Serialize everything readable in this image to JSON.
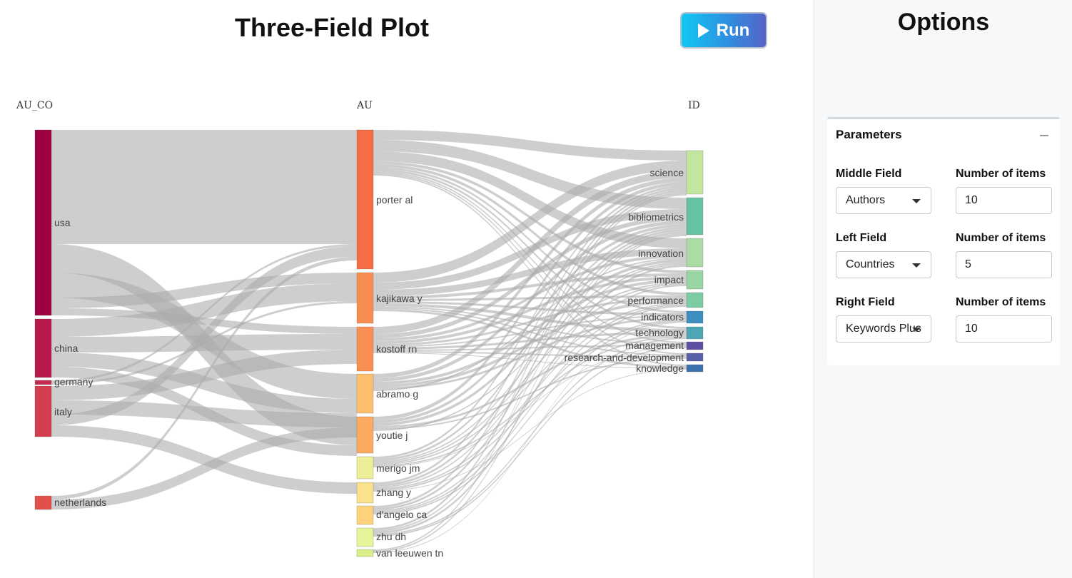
{
  "main": {
    "title": "Three-Field Plot",
    "run_label": "Run"
  },
  "chart_data": {
    "type": "sankey",
    "columns": [
      "AU_CO",
      "AU",
      "ID"
    ],
    "left_nodes": [
      {
        "label": "usa",
        "color": "#9e0142"
      },
      {
        "label": "china",
        "color": "#b8194a"
      },
      {
        "label": "germany",
        "color": "#c52a4f"
      },
      {
        "label": "italy",
        "color": "#d53e4f"
      },
      {
        "label": "netherlands",
        "color": "#e2504a"
      }
    ],
    "middle_nodes": [
      {
        "label": "porter al",
        "color": "#f46d43"
      },
      {
        "label": "kajikawa y",
        "color": "#f88d52"
      },
      {
        "label": "kostoff rn",
        "color": "#f98e52"
      },
      {
        "label": "abramo g",
        "color": "#fdbe6e"
      },
      {
        "label": "youtie j",
        "color": "#fcaa5f"
      },
      {
        "label": "merigo jm",
        "color": "#eeee96"
      },
      {
        "label": "zhang y",
        "color": "#fbe18c"
      },
      {
        "label": "d'angelo ca",
        "color": "#fdd27a"
      },
      {
        "label": "zhu dh",
        "color": "#e6f598"
      },
      {
        "label": "van leeuwen tn",
        "color": "#d9ef8b"
      }
    ],
    "right_nodes": [
      {
        "label": "science",
        "color": "#c2e6a0"
      },
      {
        "label": "bibliometrics",
        "color": "#66c2a5"
      },
      {
        "label": "innovation",
        "color": "#aadca4"
      },
      {
        "label": "impact",
        "color": "#98d5a2"
      },
      {
        "label": "performance",
        "color": "#7ccba2"
      },
      {
        "label": "indicators",
        "color": "#3e8fbf"
      },
      {
        "label": "technology",
        "color": "#4ea6b4"
      },
      {
        "label": "management",
        "color": "#5e4fa2"
      },
      {
        "label": "research-and-development",
        "color": "#5860a8"
      },
      {
        "label": "knowledge",
        "color": "#3d72b0"
      }
    ]
  },
  "sidebar": {
    "title": "Options",
    "parameters_title": "Parameters",
    "middle_field_label": "Middle Field",
    "middle_field_value": "Authors",
    "middle_items_label": "Number of items",
    "middle_items_value": "10",
    "left_field_label": "Left Field",
    "left_field_value": "Countries",
    "left_items_label": "Number of items",
    "left_items_value": "5",
    "right_field_label": "Right Field",
    "right_field_value": "Keywords Plus",
    "right_items_label": "Number of items",
    "right_items_value": "10"
  }
}
